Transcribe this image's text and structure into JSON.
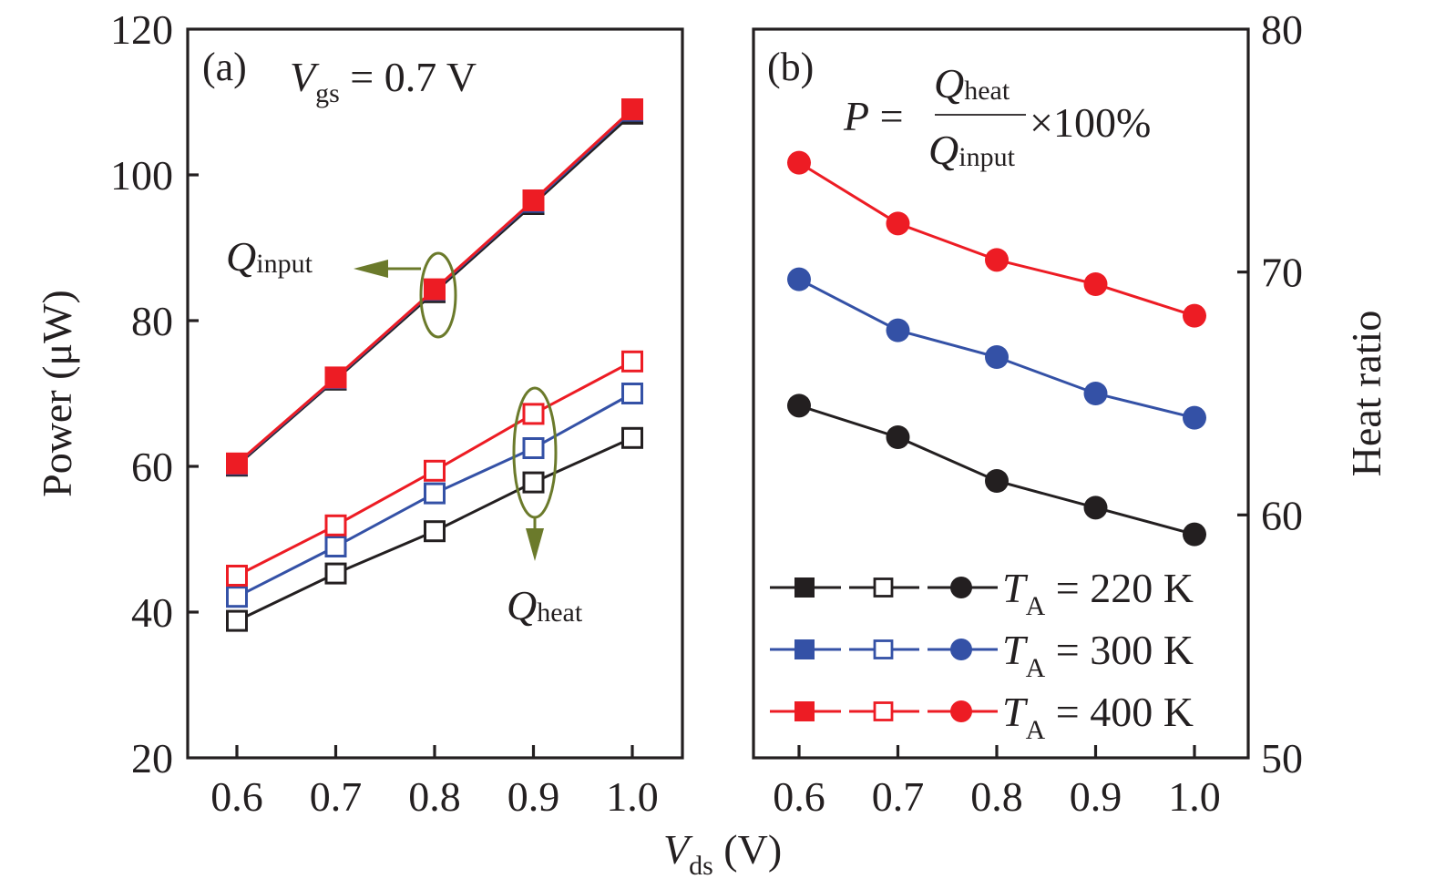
{
  "chart_data": [
    {
      "panel": "a",
      "type": "line",
      "panel_label": "(a)",
      "annotation": {
        "var": "V",
        "sub": "gs",
        "rest": " = 0.7 V"
      },
      "x": [
        0.6,
        0.7,
        0.8,
        0.9,
        1.0
      ],
      "xticks": [
        "0.6",
        "0.7",
        "0.8",
        "0.9",
        "1.0"
      ],
      "xlim": [
        0.55,
        1.05
      ],
      "ylabel": "Power (μW)",
      "ylim": [
        20,
        120
      ],
      "yticks": [
        "20",
        "40",
        "60",
        "80",
        "100",
        "120"
      ],
      "yticks_values": [
        20,
        40,
        60,
        80,
        100,
        120
      ],
      "grid": false,
      "series": [
        {
          "name": "Q_input, T_A = 220 K",
          "color": "#231f20",
          "marker": "square-filled",
          "values": [
            60.1,
            71.9,
            83.9,
            96.0,
            108.4
          ]
        },
        {
          "name": "Q_input, T_A = 300 K",
          "color": "#3451a6",
          "marker": "square-filled",
          "values": [
            60.3,
            72.1,
            84.2,
            96.3,
            108.8
          ]
        },
        {
          "name": "Q_input, T_A = 400 K",
          "color": "#ed1c24",
          "marker": "square-filled",
          "values": [
            60.4,
            72.2,
            84.3,
            96.5,
            109.0
          ]
        },
        {
          "name": "Q_heat, T_A = 220 K",
          "color": "#231f20",
          "marker": "square-open",
          "values": [
            38.8,
            45.3,
            51.1,
            57.8,
            63.9
          ]
        },
        {
          "name": "Q_heat, T_A = 300 K",
          "color": "#3451a6",
          "marker": "square-open",
          "values": [
            42.1,
            49.0,
            56.3,
            62.5,
            70.0
          ]
        },
        {
          "name": "Q_heat, T_A = 400 K",
          "color": "#ed1c24",
          "marker": "square-open",
          "values": [
            45.0,
            51.9,
            59.4,
            67.2,
            74.4
          ]
        }
      ],
      "callouts": [
        {
          "label_var": "Q",
          "label_sub": "input",
          "color": "#6b7a2b",
          "target_x": 0.8,
          "arrow": "left"
        },
        {
          "label_var": "Q",
          "label_sub": "heat",
          "color": "#6b7a2b",
          "target_x": 0.9,
          "arrow": "down"
        }
      ]
    },
    {
      "panel": "b",
      "type": "line",
      "panel_label": "(b)",
      "formula": {
        "lhs": "P",
        "eq": " = ",
        "num_var": "Q",
        "num_sub": "heat",
        "den_var": "Q",
        "den_sub": "input",
        "tail": "×100%"
      },
      "x": [
        0.6,
        0.7,
        0.8,
        0.9,
        1.0
      ],
      "xticks": [
        "0.6",
        "0.7",
        "0.8",
        "0.9",
        "1.0"
      ],
      "xlim": [
        0.55,
        1.05
      ],
      "ylabel": "Heat ratio",
      "ylabel_side": "right",
      "ylim": [
        50,
        80
      ],
      "yticks": [
        "50",
        "60",
        "70",
        "80"
      ],
      "yticks_values": [
        50,
        60,
        70,
        80
      ],
      "grid": false,
      "series": [
        {
          "name": "T_A = 220 K",
          "color": "#231f20",
          "marker": "circle-filled",
          "values": [
            64.5,
            63.2,
            61.4,
            60.3,
            59.2
          ]
        },
        {
          "name": "T_A = 300 K",
          "color": "#3451a6",
          "marker": "circle-filled",
          "values": [
            69.7,
            67.6,
            66.5,
            65.0,
            64.0
          ]
        },
        {
          "name": "T_A = 400 K",
          "color": "#ed1c24",
          "marker": "circle-filled",
          "values": [
            74.5,
            72.0,
            70.5,
            69.5,
            68.2
          ]
        }
      ]
    }
  ],
  "shared": {
    "xlabel": {
      "var": "V",
      "sub": "ds",
      "rest": " (V)"
    }
  },
  "legend": {
    "placement": "bottom-left of panel b",
    "entries": [
      {
        "var": "T",
        "sub": "A",
        "rest": " = 220 K",
        "color": "#231f20"
      },
      {
        "var": "T",
        "sub": "A",
        "rest": " = 300 K",
        "color": "#3451a6"
      },
      {
        "var": "T",
        "sub": "A",
        "rest": " = 400 K",
        "color": "#ed1c24"
      }
    ]
  }
}
